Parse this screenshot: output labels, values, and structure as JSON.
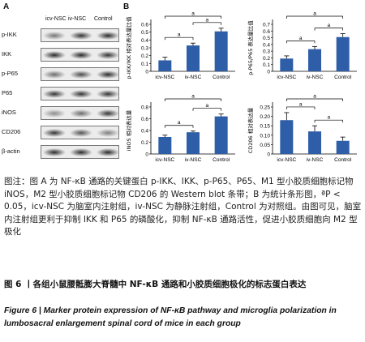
{
  "panel_a": {
    "letter": "A",
    "columns": [
      "icv-NSC",
      "iv-NSC",
      "Control"
    ],
    "rows": [
      "p-IKK",
      "IKK",
      "p-P65",
      "P65",
      "iNOS",
      "CD206",
      "β-actin"
    ]
  },
  "panel_b": {
    "letter": "B"
  },
  "chart_data": [
    {
      "type": "bar",
      "categories": [
        "icv-NSC",
        "iv-NSC",
        "Control"
      ],
      "values": [
        0.14,
        0.33,
        0.51
      ],
      "errors": [
        0.04,
        0.03,
        0.04
      ],
      "ylabel": "p-IKK/IKK 相对表达量比值",
      "ylim": [
        0,
        0.6
      ],
      "yticks": [
        "0",
        "0.1",
        "0.2",
        "0.3",
        "0.4",
        "0.5",
        "0.6"
      ],
      "significance": [
        "a",
        "a",
        "a"
      ]
    },
    {
      "type": "bar",
      "categories": [
        "icv-NSC",
        "iv-NSC",
        "Control"
      ],
      "values": [
        0.19,
        0.33,
        0.51
      ],
      "errors": [
        0.04,
        0.04,
        0.05
      ],
      "ylabel": "p-P65/P65 表达量比值",
      "ylim": [
        0,
        0.7
      ],
      "yticks": [
        "0",
        "0.1",
        "0.2",
        "0.3",
        "0.4",
        "0.5",
        "0.6",
        "0.7"
      ],
      "significance": [
        "a",
        "a",
        "a"
      ]
    },
    {
      "type": "bar",
      "categories": [
        "icv-NSC",
        "iv-NSC",
        "Control"
      ],
      "values": [
        0.29,
        0.37,
        0.64
      ],
      "errors": [
        0.03,
        0.02,
        0.04
      ],
      "ylabel": "iNOS 相对表达量",
      "ylim": [
        0,
        0.8
      ],
      "yticks": [
        "0",
        "0.2",
        "0.4",
        "0.6",
        "0.8"
      ],
      "significance": [
        "a",
        "a",
        "a"
      ]
    },
    {
      "type": "bar",
      "categories": [
        "icv-NSC",
        "iv-NSC",
        "Control"
      ],
      "values": [
        0.18,
        0.12,
        0.07
      ],
      "errors": [
        0.04,
        0.03,
        0.02
      ],
      "ylabel": "CD206 相对表达量",
      "ylim": [
        0,
        0.25
      ],
      "yticks": [
        "0",
        "0.05",
        "0.10",
        "0.15",
        "0.20",
        "0.25"
      ],
      "significance": [
        "a",
        "a",
        "a"
      ]
    }
  ],
  "caption": {
    "text": "图注：图 A 为 NF-κB 通路的关键蛋白 p-IKK、IKK、p-P65、P65、M1 型小胶质细胞标记物 iNOS，M2 型小胶质细胞标记物 CD206 的 Western blot 条带；B 为统计条形图，ªP < 0.05，icv-NSC 为脑室内注射组，iv-NSC 为静脉注射组，Control 为对照组。由图可见，脑室内注射组更利于抑制 IKK 和 P65 的磷酸化，抑制 NF-κB 通路活性，促进小胶质细胞向 M2 型极化"
  },
  "figure_title_cn": "图 6 丨各组小鼠腰骶膨大脊髓中 NF-κB 通路和小胶质细胞极化的标志蛋白表达",
  "figure_title_en": "Figure 6 | Marker protein expression of NF-κB pathway and microglia polarization in lumbosacral enlargement spinal cord of mice in each group"
}
